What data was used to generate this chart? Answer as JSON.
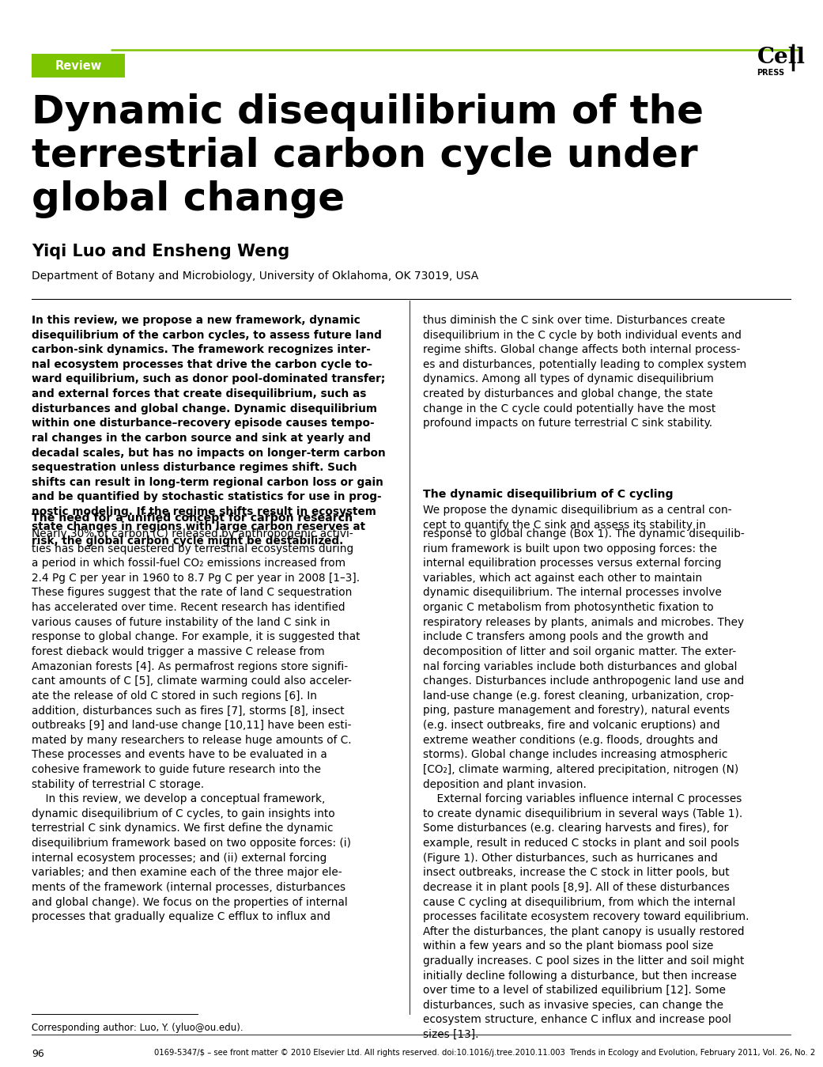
{
  "background_color": "#ffffff",
  "top_line_color": "#7dc400",
  "review_box_color": "#7dc400",
  "review_text": "Review",
  "review_text_color": "#ffffff",
  "title": "Dynamic disequilibrium of the\nterrestrial carbon cycle under\nglobal change",
  "authors": "Yiqi Luo and Ensheng Weng",
  "affiliation": "Department of Botany and Microbiology, University of Oklahoma, OK 73019, USA",
  "abstract_left": "In this review, we propose a new framework, dynamic\ndisequilibrium of the carbon cycles, to assess future land\ncarbon-sink dynamics. The framework recognizes inter-\nnal ecosystem processes that drive the carbon cycle to-\nward equilibrium, such as donor pool-dominated transfer;\nand external forces that create disequilibrium, such as\ndisturbances and global change. Dynamic disequilibrium\nwithin one disturbance–recovery episode causes tempo-\nral changes in the carbon source and sink at yearly and\ndecadal scales, but has no impacts on longer-term carbon\nsequestration unless disturbance regimes shift. Such\nshifts can result in long-term regional carbon loss or gain\nand be quantified by stochastic statistics for use in prog-\nnostic modeling. If the regime shifts result in ecosystem\nstate changes in regions with large carbon reserves at\nrisk, the global carbon cycle might be destabilized.",
  "abstract_right": "thus diminish the C sink over time. Disturbances create\ndisequilibrium in the C cycle by both individual events and\nregime shifts. Global change affects both internal process-\nes and disturbances, potentially leading to complex system\ndynamics. Among all types of dynamic disequilibrium\ncreated by disturbances and global change, the state\nchange in the C cycle could potentially have the most\nprofound impacts on future terrestrial C sink stability.",
  "section1_title": "The need for a unified concept for carbon research",
  "section1_left": "Nearly 30% of carbon (C) released by anthropogenic activi-\nties has been sequestered by terrestrial ecosystems during\na period in which fossil-fuel CO₂ emissions increased from\n2.4 Pg C per year in 1960 to 8.7 Pg C per year in 2008 [1–3].\nThese figures suggest that the rate of land C sequestration\nhas accelerated over time. Recent research has identified\nvarious causes of future instability of the land C sink in\nresponse to global change. For example, it is suggested that\nforest dieback would trigger a massive C release from\nAmazonian forests [4]. As permafrost regions store signifi-\ncant amounts of C [5], climate warming could also acceler-\nate the release of old C stored in such regions [6]. In\naddition, disturbances such as fires [7], storms [8], insect\noutbreaks [9] and land-use change [10,11] have been esti-\nmated by many researchers to release huge amounts of C.\nThese processes and events have to be evaluated in a\ncohesive framework to guide future research into the\nstability of terrestrial C storage.\n    In this review, we develop a conceptual framework,\ndynamic disequilibrium of C cycles, to gain insights into\nterrestrial C sink dynamics. We first define the dynamic\ndisequilibrium framework based on two opposite forces: (i)\ninternal ecosystem processes; and (ii) external forcing\nvariables; and then examine each of the three major ele-\nments of the framework (internal processes, disturbances\nand global change). We focus on the properties of internal\nprocesses that gradually equalize C efflux to influx and",
  "section1_right": "response to global change (Box 1). The dynamic disequilib-\nrium framework is built upon two opposing forces: the\ninternal equilibration processes versus external forcing\nvariables, which act against each other to maintain\ndynamic disequilibrium. The internal processes involve\norganic C metabolism from photosynthetic fixation to\nrespiratory releases by plants, animals and microbes. They\ninclude C transfers among pools and the growth and\ndecomposition of litter and soil organic matter. The exter-\nnal forcing variables include both disturbances and global\nchanges. Disturbances include anthropogenic land use and\nland-use change (e.g. forest cleaning, urbanization, crop-\nping, pasture management and forestry), natural events\n(e.g. insect outbreaks, fire and volcanic eruptions) and\nextreme weather conditions (e.g. floods, droughts and\nstorms). Global change includes increasing atmospheric\n[CO₂], climate warming, altered precipitation, nitrogen (N)\ndeposition and plant invasion.\n    External forcing variables influence internal C processes\nto create dynamic disequilibrium in several ways (Table 1).\nSome disturbances (e.g. clearing harvests and fires), for\nexample, result in reduced C stocks in plant and soil pools\n(Figure 1). Other disturbances, such as hurricanes and\ninsect outbreaks, increase the C stock in litter pools, but\ndecrease it in plant pools [8,9]. All of these disturbances\ncause C cycling at disequilibrium, from which the internal\nprocesses facilitate ecosystem recovery toward equilibrium.\nAfter the disturbances, the plant canopy is usually restored\nwithin a few years and so the plant biomass pool size\ngradually increases. C pool sizes in the litter and soil might\ninitially decline following a disturbance, but then increase\nover time to a level of stabilized equilibrium [12]. Some\ndisturbances, such as invasive species, can change the\necosystem structure, enhance C influx and increase pool\nsizes [13].",
  "section2_title": "The dynamic disequilibrium of C cycling",
  "section2_intro": "We propose the dynamic disequilibrium as a central con-\ncept to quantify the C sink and assess its stability in",
  "footer_left": "Corresponding author: Luo, Y. (yluo@ou.edu).",
  "footer_right": "0169-5347/$ – see front matter © 2010 Elsevier Ltd. All rights reserved. doi:10.1016/j.tree.2010.11.003  Trends in Ecology and Evolution, February 2011, Vol. 26, No. 2",
  "page_number": "96"
}
